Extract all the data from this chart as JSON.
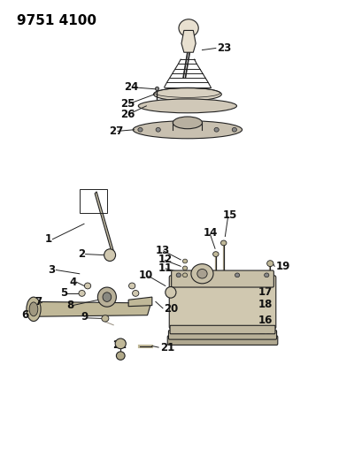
{
  "title": "9751 4100",
  "bg_color": "#ffffff",
  "text_color": "#000000",
  "title_fontsize": 11,
  "label_fontsize": 8.5,
  "fig_width": 4.1,
  "fig_height": 5.33,
  "dpi": 100
}
